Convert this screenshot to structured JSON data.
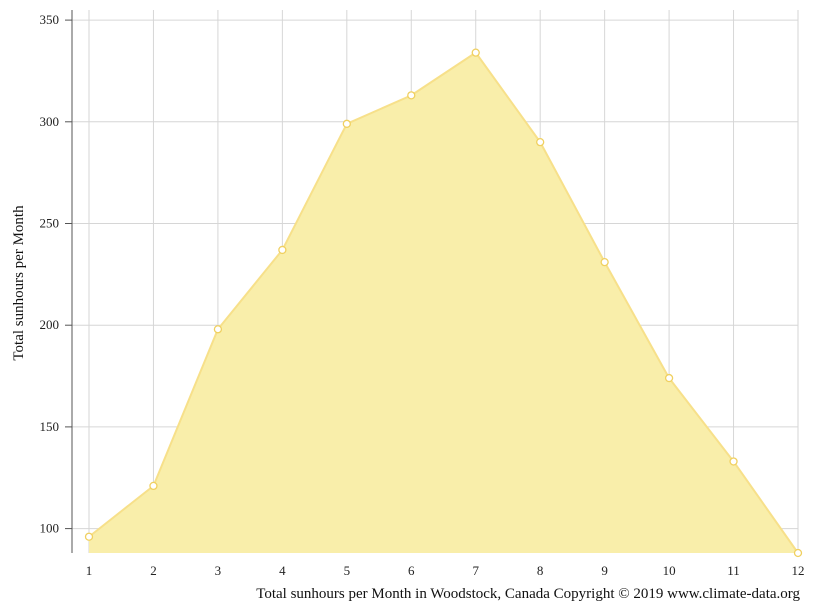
{
  "chart_data": {
    "type": "area",
    "categories": [
      "1",
      "2",
      "3",
      "4",
      "5",
      "6",
      "7",
      "8",
      "9",
      "10",
      "11",
      "12"
    ],
    "series": [
      {
        "values": [
          96,
          121,
          198,
          237,
          299,
          313,
          334,
          290,
          231,
          174,
          133,
          88
        ]
      }
    ],
    "title": "",
    "xlabel": "",
    "ylabel": "Total sunhours per Month",
    "caption": "Total sunhours per Month in Woodstock, Canada Copyright © 2019 www.climate-data.org",
    "ylim": [
      88,
      353
    ],
    "yticks": [
      100,
      150,
      200,
      250,
      300,
      350
    ],
    "grid": true,
    "legend": "none",
    "fill_color": "#f9eeaa",
    "line_color": "#f7e08a",
    "marker_stroke": "#f0d060"
  }
}
